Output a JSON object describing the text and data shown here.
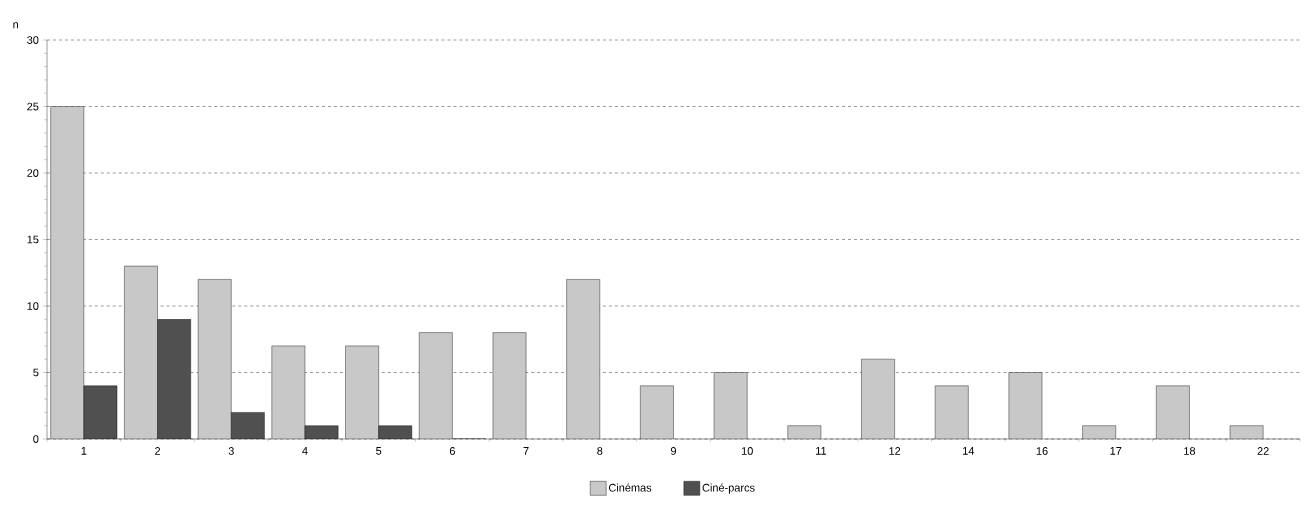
{
  "chart_data": {
    "type": "bar",
    "ylabel": "n",
    "categories": [
      "1",
      "2",
      "3",
      "4",
      "5",
      "6",
      "7",
      "8",
      "9",
      "10",
      "11",
      "12",
      "14",
      "16",
      "17",
      "18",
      "22"
    ],
    "series": [
      {
        "name": "Cinémas",
        "color": "#c8c8c8",
        "values": [
          25,
          13,
          12,
          7,
          7,
          8,
          8,
          12,
          4,
          5,
          1,
          6,
          4,
          5,
          1,
          4,
          1
        ]
      },
      {
        "name": "Ciné-parcs",
        "color": "#505050",
        "values": [
          4,
          9,
          2,
          1,
          1,
          0,
          null,
          null,
          null,
          null,
          null,
          null,
          null,
          null,
          null,
          null,
          null
        ]
      }
    ],
    "ylim": [
      0,
      30
    ],
    "yticks": [
      0,
      5,
      10,
      15,
      20,
      25,
      30
    ],
    "grid": "y",
    "legend": "bottom"
  }
}
